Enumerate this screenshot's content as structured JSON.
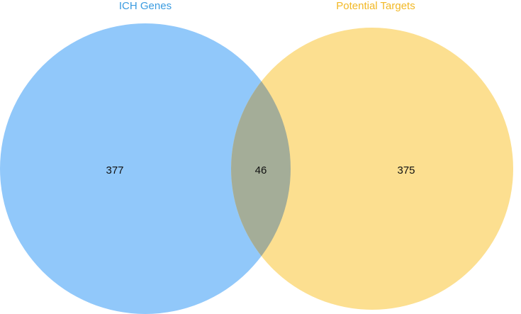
{
  "venn": {
    "sets": [
      {
        "label": "ICH Genes",
        "color": "#91c8fa",
        "label_color": "#3a9be0"
      },
      {
        "label": "Potential Targets",
        "color": "#fcdf90",
        "label_color": "#f2b824"
      }
    ],
    "regions": {
      "left_only": "377",
      "overlap": "46",
      "right_only": "375"
    }
  }
}
